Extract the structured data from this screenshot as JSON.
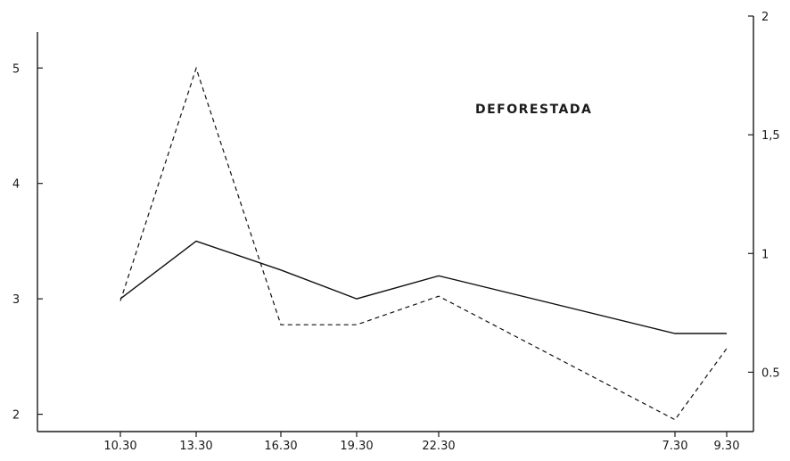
{
  "chart_data": {
    "type": "line",
    "title": "DEFORESTADA",
    "categories": [
      "10.30",
      "13.30",
      "16.30",
      "19.30",
      "22.30",
      "7.30",
      "9.30"
    ],
    "y_left": {
      "range": [
        1.85,
        5.45
      ],
      "ticks": [
        2,
        3,
        4,
        5
      ],
      "tick_labels": [
        "2",
        "3",
        "4",
        "5"
      ]
    },
    "y_right": {
      "range": [
        0.25,
        2.0
      ],
      "ticks": [
        0.5,
        1,
        1.5,
        2
      ],
      "tick_labels": [
        "0.5",
        "1",
        "1,5",
        "2"
      ]
    },
    "grid": false,
    "legend": "none",
    "series": [
      {
        "style": "solid",
        "axis": "left",
        "values": [
          3.0,
          3.5,
          3.25,
          3.0,
          3.2,
          2.7,
          2.7
        ]
      },
      {
        "style": "dashed",
        "axis": "right",
        "values": [
          0.8,
          1.78,
          0.7,
          0.7,
          0.82,
          0.3,
          0.6
        ]
      }
    ]
  }
}
